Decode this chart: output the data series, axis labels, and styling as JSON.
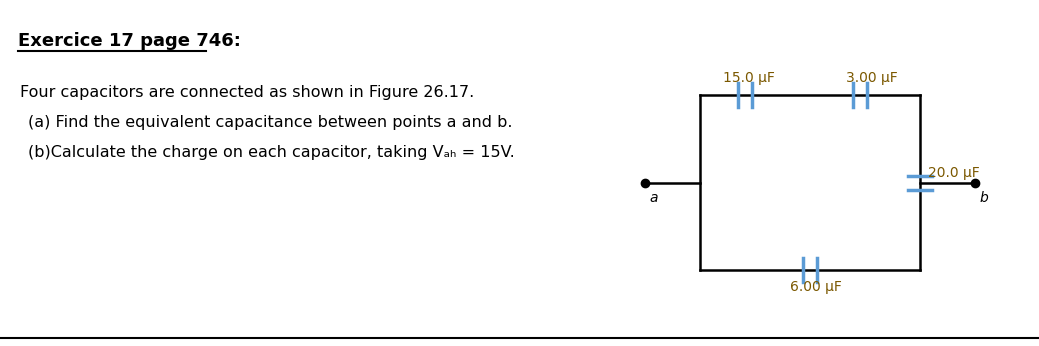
{
  "title": "Exercice 17 page 746:",
  "line1": "Four capacitors are connected as shown in Figure 26.17.",
  "line2": "(a) Find the equivalent capacitance between points a and b.",
  "line3": "(b)Calculate the charge on each capacitor, taking Vₐₕ = 15V.",
  "bg_color": "#ffffff",
  "circuit_color": "#000000",
  "cap_color": "#5B9BD5",
  "label_color": "#7B5800",
  "cap_15": "15.0 μF",
  "cap_3": "3.00 μF",
  "cap_6": "6.00 μF",
  "cap_20": "20.0 μF",
  "point_a": "a",
  "point_b": "b",
  "bottom_line_color": "#000000",
  "figw": 10.39,
  "figh": 3.46
}
